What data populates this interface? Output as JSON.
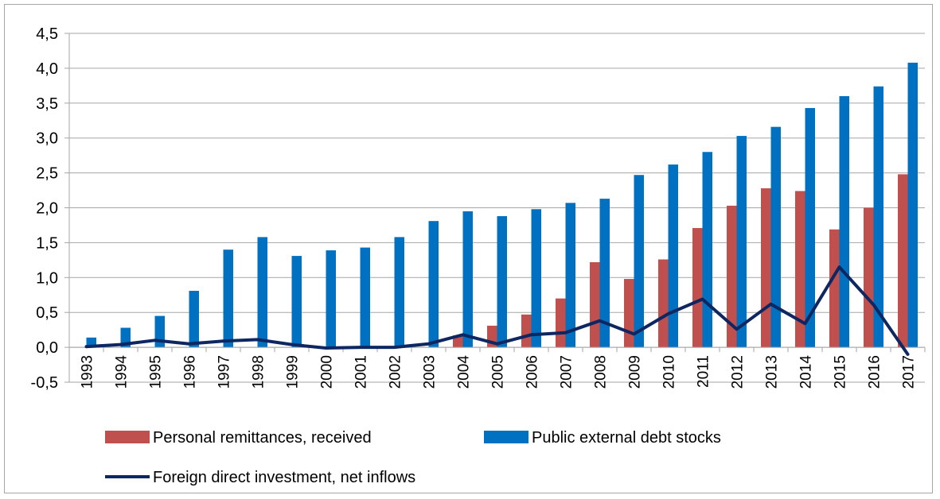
{
  "chart_data": {
    "type": "bar",
    "categories": [
      "1993",
      "1994",
      "1995",
      "1996",
      "1997",
      "1998",
      "1999",
      "2000",
      "2001",
      "2002",
      "2003",
      "2004",
      "2005",
      "2006",
      "2007",
      "2008",
      "2009",
      "2010",
      "2011",
      "2012",
      "2013",
      "2014",
      "2015",
      "2016",
      "2017"
    ],
    "series": [
      {
        "name": "Personal remittances, received",
        "kind": "bar",
        "color": "#c0504d",
        "values": [
          0,
          0,
          0,
          0,
          0,
          0,
          0,
          0,
          0,
          0,
          0,
          0.17,
          0.31,
          0.47,
          0.7,
          1.22,
          0.98,
          1.26,
          1.71,
          2.03,
          2.28,
          2.24,
          1.69,
          2.0,
          2.48
        ]
      },
      {
        "name": "Public external debt stocks",
        "kind": "bar",
        "color": "#0070c0",
        "values": [
          0.14,
          0.28,
          0.45,
          0.81,
          1.4,
          1.58,
          1.31,
          1.39,
          1.43,
          1.58,
          1.81,
          1.95,
          1.88,
          1.98,
          2.07,
          2.13,
          2.47,
          2.62,
          2.8,
          3.03,
          3.16,
          3.43,
          3.6,
          3.74,
          4.08
        ]
      },
      {
        "name": "Foreign direct investment, net inflows",
        "kind": "line",
        "color": "#0e2760",
        "values": [
          0.01,
          0.04,
          0.1,
          0.05,
          0.09,
          0.11,
          0.04,
          -0.01,
          0.0,
          0.0,
          0.05,
          0.18,
          0.05,
          0.18,
          0.21,
          0.38,
          0.19,
          0.48,
          0.69,
          0.26,
          0.62,
          0.34,
          1.15,
          0.61,
          -0.1
        ]
      }
    ],
    "yticks": [
      "-0,5",
      "0,0",
      "0,5",
      "1,0",
      "1,5",
      "2,0",
      "2,5",
      "3,0",
      "3,5",
      "4,0",
      "4,5"
    ],
    "ylim": [
      -0.5,
      4.5
    ],
    "grid": "horizontal",
    "legend": "bottom",
    "title": "",
    "xlabel": "",
    "ylabel": ""
  }
}
